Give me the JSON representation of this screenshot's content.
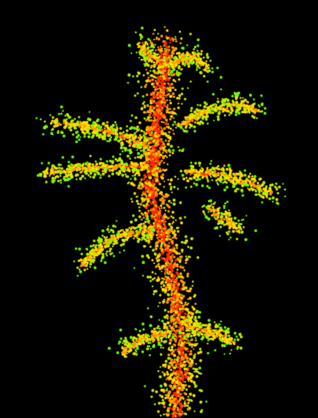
{
  "image": {
    "subject": "fractal-growth-cluster",
    "background_color": "#000000",
    "palette": {
      "outer": "#66ff00",
      "mid_outer": "#b8f000",
      "middle": "#ffe000",
      "mid_inner": "#ff9900",
      "core": "#ff2a00"
    }
  }
}
